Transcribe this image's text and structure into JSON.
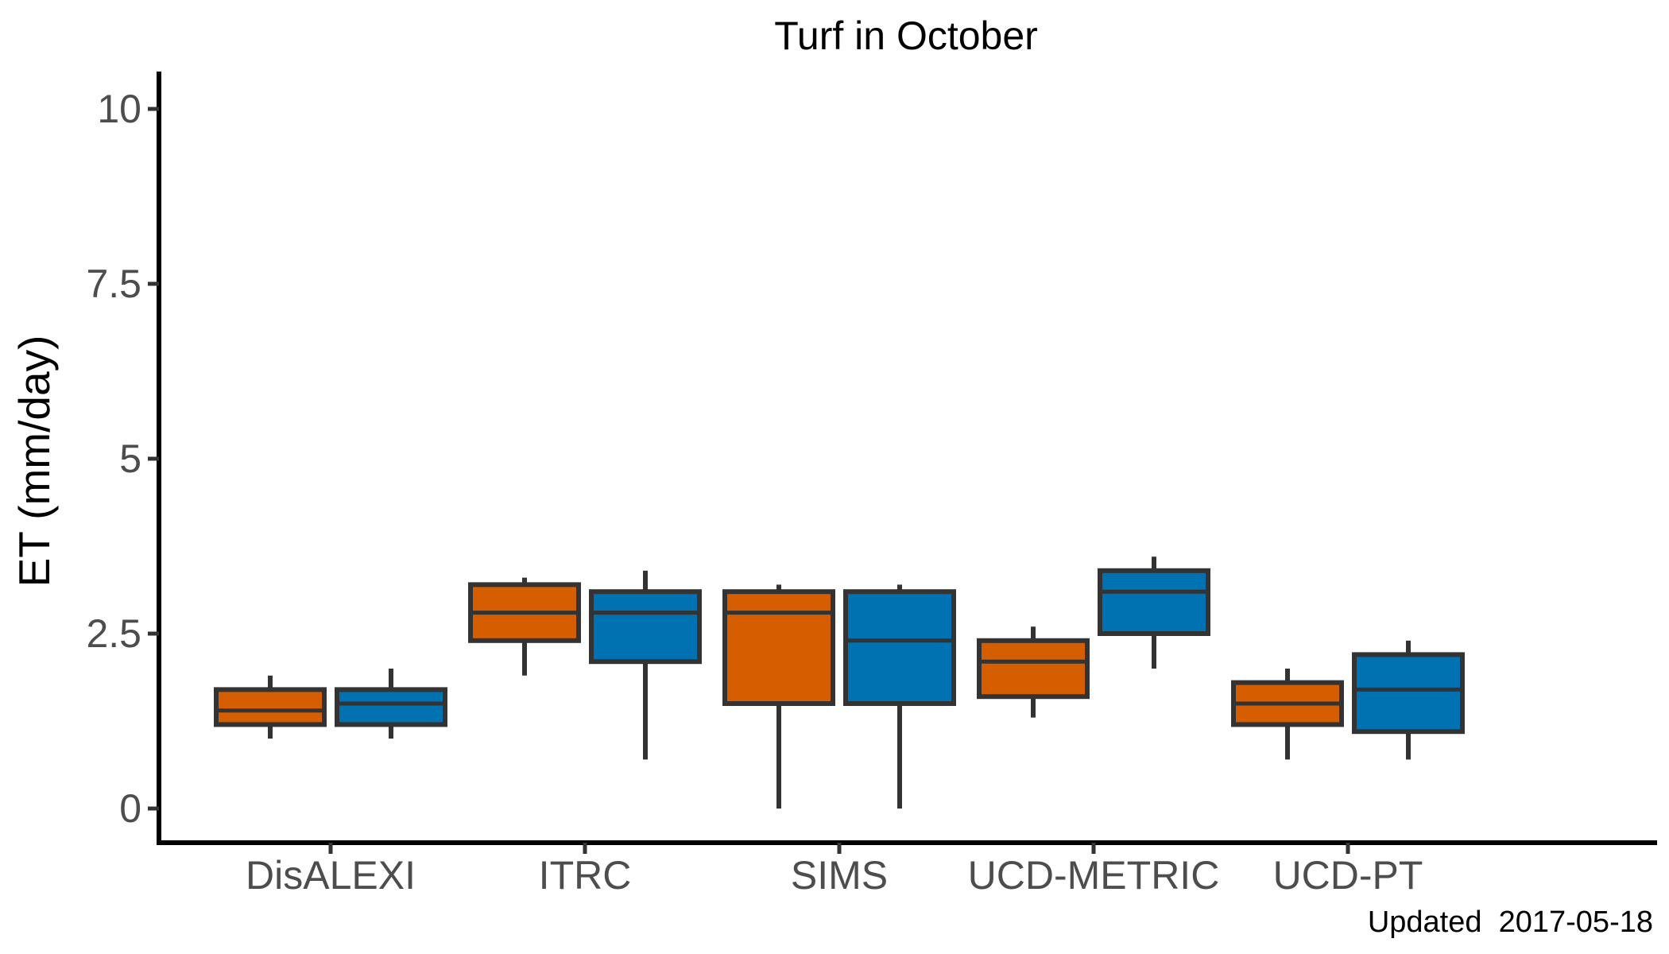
{
  "chart_data": {
    "type": "boxplot",
    "title": "Turf in October",
    "xlabel": "",
    "ylabel": "ET (mm/day)",
    "ylim": [
      -0.5,
      10.5
    ],
    "yticks": [
      0,
      2.5,
      5,
      7.5,
      10
    ],
    "ytick_labels": [
      "0",
      "2.5",
      "5",
      "7.5",
      "10"
    ],
    "categories": [
      "DisALEXI",
      "ITRC",
      "SIMS",
      "UCD-METRIC",
      "UCD-PT"
    ],
    "grid": false,
    "legend": "none",
    "series": [
      {
        "color": "#d55e00",
        "boxes": [
          {
            "whisker_low": 1.0,
            "q1": 1.2,
            "median": 1.4,
            "q3": 1.7,
            "whisker_high": 1.9
          },
          {
            "whisker_low": 1.9,
            "q1": 2.4,
            "median": 2.8,
            "q3": 3.2,
            "whisker_high": 3.3
          },
          {
            "whisker_low": 0.0,
            "q1": 1.5,
            "median": 2.8,
            "q3": 3.1,
            "whisker_high": 3.2
          },
          {
            "whisker_low": 1.3,
            "q1": 1.6,
            "median": 2.1,
            "q3": 2.4,
            "whisker_high": 2.6
          },
          {
            "whisker_low": 0.7,
            "q1": 1.2,
            "median": 1.5,
            "q3": 1.8,
            "whisker_high": 2.0
          }
        ]
      },
      {
        "color": "#0072b2",
        "boxes": [
          {
            "whisker_low": 1.0,
            "q1": 1.2,
            "median": 1.5,
            "q3": 1.7,
            "whisker_high": 2.0
          },
          {
            "whisker_low": 0.7,
            "q1": 2.1,
            "median": 2.8,
            "q3": 3.1,
            "whisker_high": 3.4
          },
          {
            "whisker_low": 0.0,
            "q1": 1.5,
            "median": 2.4,
            "q3": 3.1,
            "whisker_high": 3.2
          },
          {
            "whisker_low": 2.0,
            "q1": 2.5,
            "median": 3.1,
            "q3": 3.4,
            "whisker_high": 3.6
          },
          {
            "whisker_low": 0.7,
            "q1": 1.1,
            "median": 1.7,
            "q3": 2.2,
            "whisker_high": 2.4
          }
        ]
      }
    ],
    "caption": "Updated  2017-05-18"
  }
}
